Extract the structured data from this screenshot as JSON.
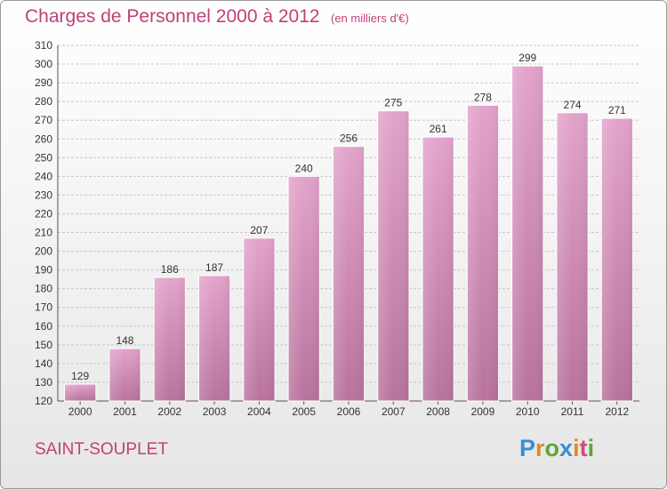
{
  "header": {
    "title": "Charges de Personnel 2000 à 2012",
    "unit": "(en milliers d'€)"
  },
  "footer": {
    "place": "SAINT-SOUPLET",
    "logo": "Proxiti"
  },
  "colors": {
    "title": "#c0407a",
    "bar_top": "#e3a3cb",
    "bar_bottom": "#b8739d",
    "logo_letters": [
      "#3a8fd0",
      "#e0882a",
      "#5aa83a",
      "#3a8fd0",
      "#e0882a",
      "#d44a7a",
      "#5aa83a"
    ]
  },
  "chart_data": {
    "type": "bar",
    "categories": [
      "2000",
      "2001",
      "2002",
      "2003",
      "2004",
      "2005",
      "2006",
      "2007",
      "2008",
      "2009",
      "2010",
      "2011",
      "2012"
    ],
    "values": [
      129,
      148,
      186,
      187,
      207,
      240,
      256,
      275,
      261,
      278,
      299,
      274,
      271
    ],
    "title": "Charges de Personnel 2000 à 2012",
    "ylim": [
      120,
      310
    ],
    "yticks": [
      120,
      130,
      140,
      150,
      160,
      170,
      180,
      190,
      200,
      210,
      220,
      230,
      240,
      250,
      260,
      270,
      280,
      290,
      300,
      310
    ],
    "grid": true,
    "data_labels": true
  }
}
